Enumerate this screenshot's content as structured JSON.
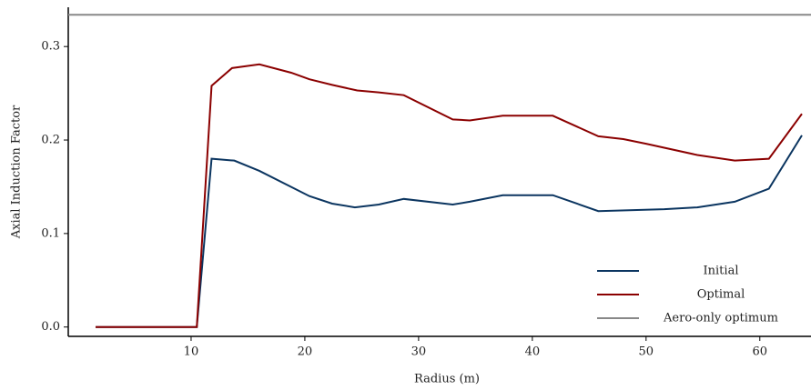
{
  "chart_data": {
    "type": "line",
    "xlabel": "Radius (m)",
    "ylabel": "Axial Induction Factor",
    "xlim": [
      -0.8,
      64.5
    ],
    "ylim": [
      -0.01,
      0.342
    ],
    "xticks": [
      10,
      20,
      30,
      40,
      50,
      60
    ],
    "yticks": [
      {
        "value": 0,
        "label": "0.0"
      },
      0.1,
      0.2,
      0.3
    ],
    "legend": "lower right",
    "series": [
      {
        "name": "Initial",
        "color": "#0b3560",
        "x": [
          1.6,
          10.5,
          11.8,
          13.8,
          16,
          20.4,
          22.4,
          24.4,
          26.5,
          28.7,
          33,
          34.5,
          37.4,
          41.8,
          45.8,
          51.6,
          54.5,
          57.8,
          60.8,
          63.7
        ],
        "values": [
          0,
          0,
          0.18,
          0.178,
          0.167,
          0.14,
          0.132,
          0.128,
          0.131,
          0.137,
          0.131,
          0.134,
          0.141,
          0.141,
          0.124,
          0.126,
          0.128,
          0.134,
          0.148,
          0.205
        ]
      },
      {
        "name": "Optimal",
        "color": "#8b0000",
        "x": [
          1.6,
          10.5,
          11.8,
          13.6,
          16,
          18.8,
          20.4,
          22.4,
          24.6,
          26.5,
          28.7,
          33,
          34.5,
          37.4,
          39.8,
          41.8,
          45.8,
          48,
          50,
          54.5,
          57.8,
          60.8,
          63.7
        ],
        "values": [
          0,
          0,
          0.258,
          0.277,
          0.281,
          0.272,
          0.265,
          0.259,
          0.253,
          0.251,
          0.248,
          0.222,
          0.221,
          0.226,
          0.226,
          0.226,
          0.204,
          0.201,
          0.196,
          0.184,
          0.178,
          0.18,
          0.228
        ]
      },
      {
        "name": "Aero-only optimum",
        "color": "#888888",
        "x": [
          -0.8,
          64.5
        ],
        "values": [
          0.334,
          0.334
        ]
      }
    ]
  }
}
